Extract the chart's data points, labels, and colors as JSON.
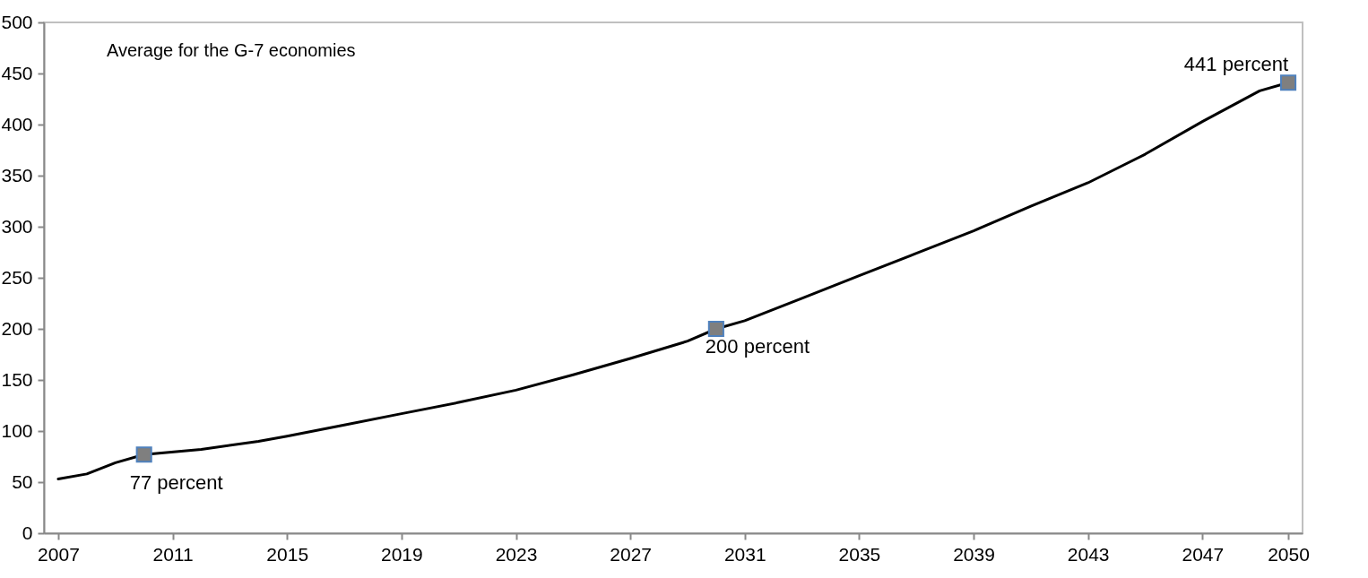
{
  "chart_data": {
    "type": "line",
    "x": [
      2007,
      2008,
      2009,
      2010,
      2012,
      2014,
      2015,
      2017,
      2019,
      2021,
      2023,
      2025,
      2027,
      2029,
      2030,
      2031,
      2033,
      2035,
      2037,
      2039,
      2041,
      2043,
      2045,
      2047,
      2049,
      2050
    ],
    "series": [
      {
        "color": "#000000",
        "marker": "none",
        "values": [
          53,
          58,
          69,
          77,
          82,
          90,
          95,
          106,
          117,
          128,
          140,
          155,
          171,
          188,
          200,
          208,
          230,
          252,
          274,
          296,
          320,
          343,
          371,
          403,
          433,
          441
        ]
      },
      {
        "type": "scatter",
        "color": "#7f7f7f",
        "marker": "square",
        "x": [
          2010,
          2030,
          2050
        ],
        "values": [
          77,
          200,
          441
        ]
      }
    ],
    "xlim": [
      2006.5,
      2050.5
    ],
    "xticks": [
      2007,
      2011,
      2015,
      2019,
      2023,
      2027,
      2031,
      2035,
      2039,
      2043,
      2047,
      2050
    ],
    "ylim": [
      0,
      500
    ],
    "yticks": [
      0,
      50,
      100,
      150,
      200,
      250,
      300,
      350,
      400,
      450,
      500
    ],
    "grid": false,
    "annotations": [
      "Average for the G-7 economies",
      {
        "text": "77 percent",
        "x": 2010,
        "y": 77
      },
      {
        "text": "200 percent",
        "x": 2030,
        "y": 200
      },
      {
        "text": "441 percent",
        "x": 2050,
        "y": 441
      }
    ]
  }
}
